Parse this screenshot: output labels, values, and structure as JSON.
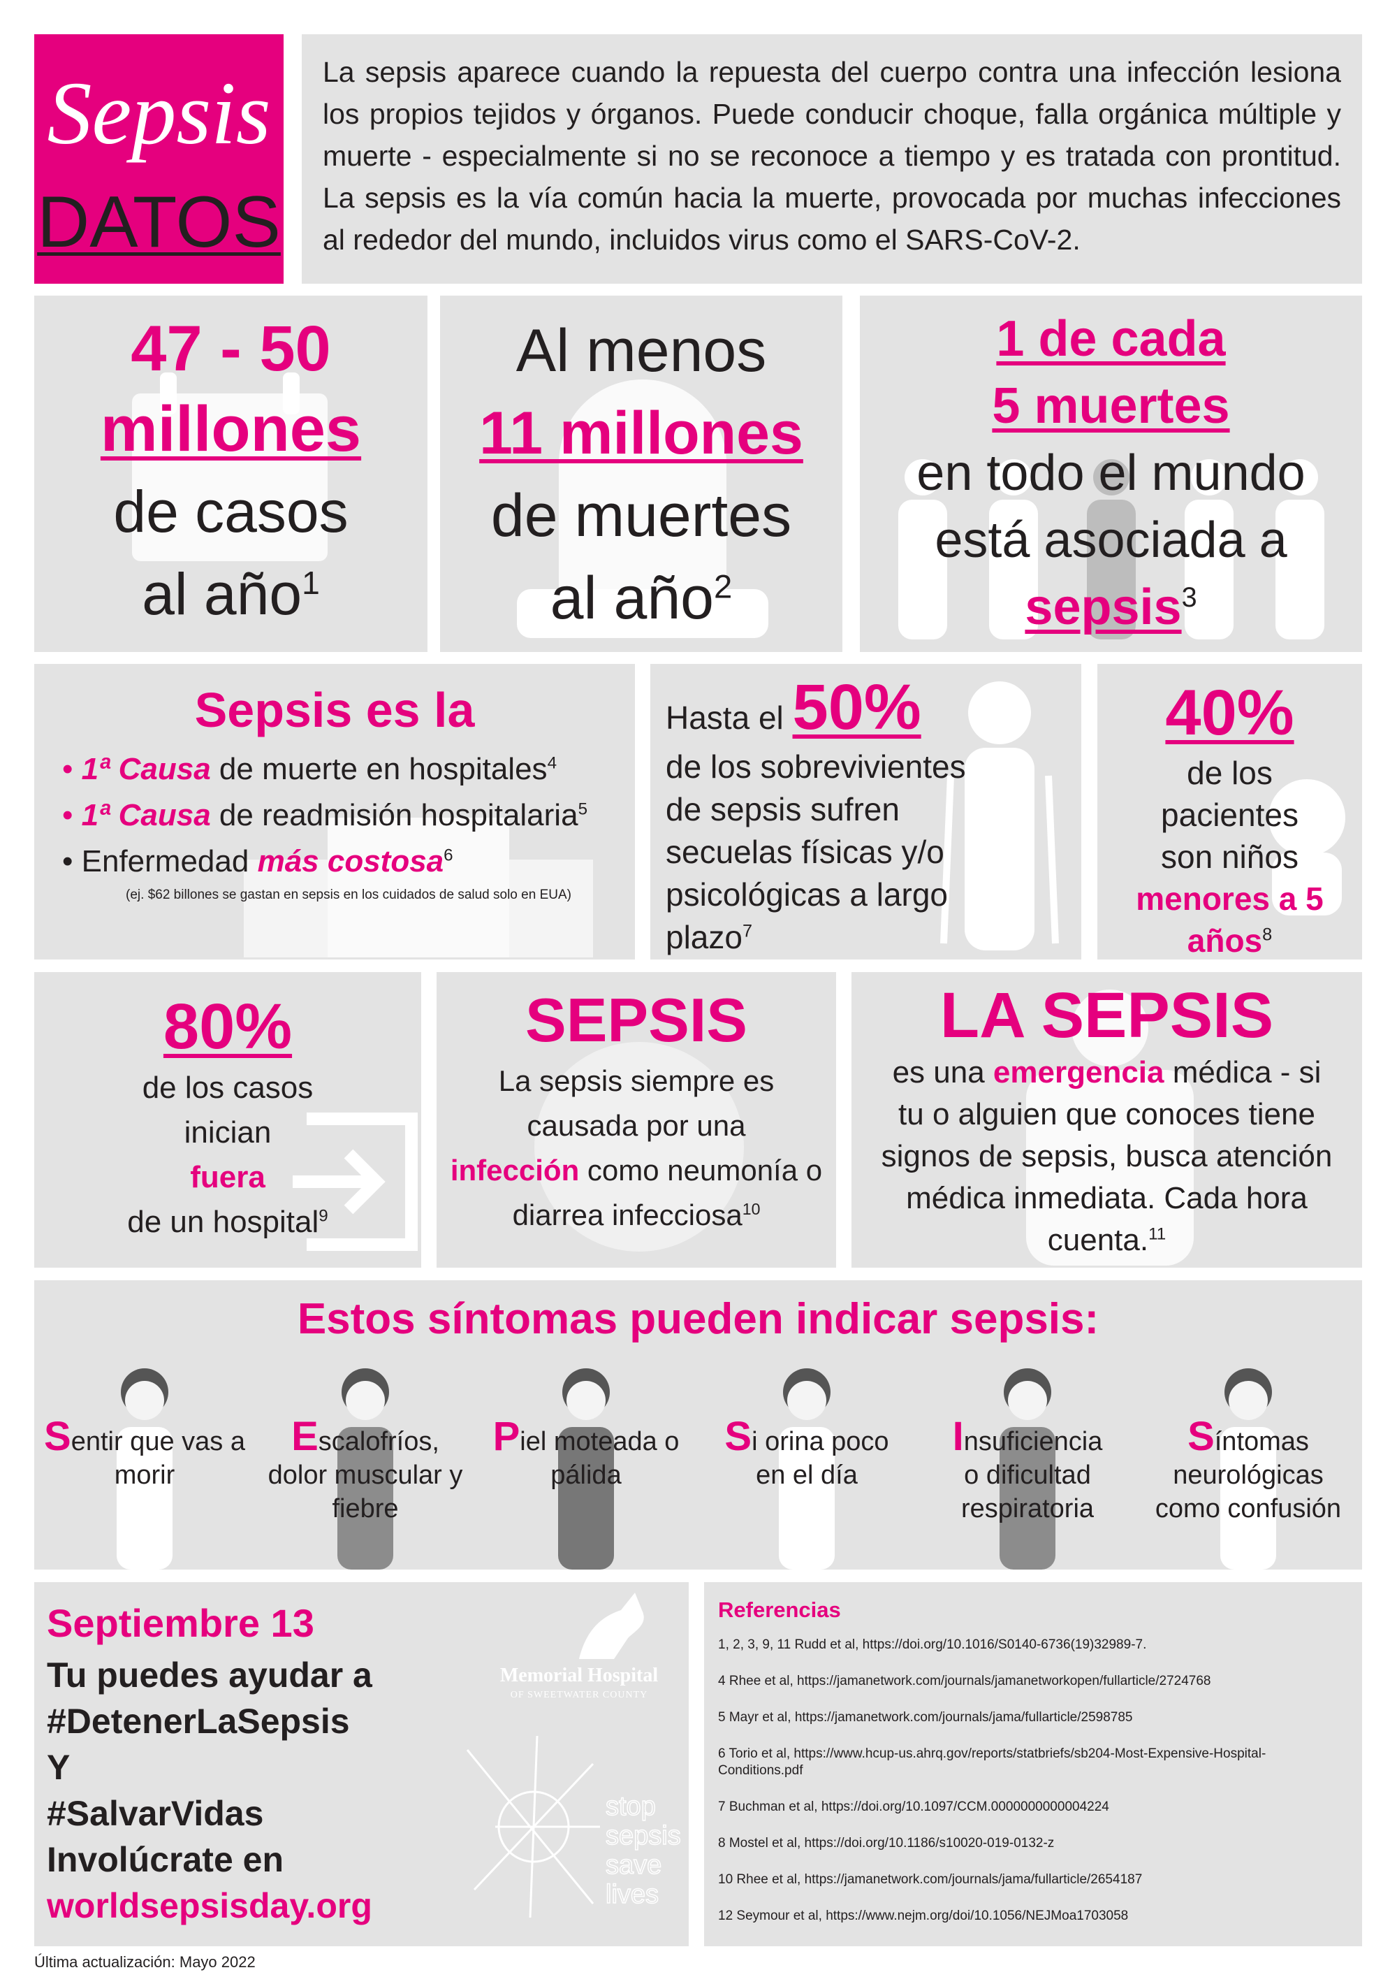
{
  "header": {
    "title1": "Sepsis",
    "title2": "DATOS",
    "intro": "La sepsis aparece cuando la repuesta del cuerpo contra una infección lesiona los propios tejidos y órganos. Puede conducir choque, falla orgánica múltiple y muerte - especialmente si no se reconoce a tiempo y es tratada con prontitud. La sepsis es la vía común hacia la muerte, provocada por muchas infecciones al rededor del mundo, incluidos virus como el SARS-CoV-2."
  },
  "cases": {
    "number": "47 - 50",
    "unit": "millones",
    "line1": "de casos",
    "line2": "al año",
    "ref": "1"
  },
  "deaths": {
    "lead": "Al menos",
    "number": "11 millones",
    "line1": "de muertes",
    "line2": "al año",
    "ref": "2"
  },
  "share": {
    "line1": "1 de cada",
    "line2": "5 muertes",
    "line3": "en todo el mundo",
    "line4": "está asociada a",
    "highlight": "sepsis",
    "ref": "3"
  },
  "causes": {
    "title": "Sepsis es la",
    "items": [
      {
        "emph": "1ª Causa",
        "text": "de muerte en hospitales",
        "ref": "4"
      },
      {
        "emph": "1ª Causa",
        "text": "de readmisión hospitalaria",
        "ref": "5"
      },
      {
        "text": "Enfermedad",
        "emph": "más costosa",
        "ref": "6"
      }
    ],
    "note": "(ej. $62 billones se gastan en sepsis en los cuidados de salud solo en EUA)"
  },
  "survivors": {
    "lead": "Hasta el",
    "number": "50%",
    "text": "de los sobrevivientes de sepsis sufren secuelas físicas y/o psicológicas a largo plazo",
    "ref": "7"
  },
  "children": {
    "number": "40%",
    "text": "de los pacientes son niños",
    "highlight": "menores a 5 años",
    "ref": "8"
  },
  "outside": {
    "number": "80%",
    "text1": "de los casos inician",
    "highlight": "fuera",
    "text2": "de un hospital",
    "ref": "9"
  },
  "infection": {
    "title": "SEPSIS",
    "text1": "La sepsis siempre es causada por una",
    "highlight": "infección",
    "text2": "como neumonía o diarrea infecciosa",
    "ref": "10"
  },
  "emergency": {
    "title": "LA SEPSIS",
    "text1": "es una",
    "highlight": "emergencia",
    "text2": "médica - si tu o alguien que conoces tiene signos de sepsis, busca atención médica inmediata. Cada hora cuenta.",
    "ref": "11"
  },
  "symptoms": {
    "title": "Estos síntomas pueden indicar sepsis:",
    "items": [
      {
        "initial": "S",
        "rest": "entir que vas a morir"
      },
      {
        "initial": "E",
        "rest": "scalofríos, dolor muscular y fiebre"
      },
      {
        "initial": "P",
        "rest": "iel moteada o pálida"
      },
      {
        "initial": "S",
        "rest": "i orina poco en el día"
      },
      {
        "initial": "I",
        "rest": "nsuficiencia o dificultad respiratoria"
      },
      {
        "initial": "S",
        "rest": "íntomas neurológicas como confusión"
      }
    ]
  },
  "campaign": {
    "date": "Septiembre 13",
    "lines": [
      "Tu puedes ayudar a",
      "#DetenerLaSepsis",
      "Y",
      "#SalvarVidas",
      "Involúcrate en"
    ],
    "url": "worldsepsisday.org"
  },
  "logo": {
    "name": "Memorial Hospital",
    "sub": "OF SWEETWATER COUNTY",
    "slogan": [
      "stop",
      "sepsis",
      "save",
      "lives"
    ]
  },
  "references": {
    "title": "Referencias",
    "items": [
      "1, 2, 3, 9, 11 Rudd et al, https://doi.org/10.1016/S0140-6736(19)32989-7.",
      "4 Rhee et al, https://jamanetwork.com/journals/jamanetworkopen/fullarticle/2724768",
      "5 Mayr et al, https://jamanetwork.com/journals/jama/fullarticle/2598785",
      "6 Torio et al, https://www.hcup-us.ahrq.gov/reports/statbriefs/sb204-Most-Expensive-Hospital-Conditions.pdf",
      "7 Buchman et al, https://doi.org/10.1097/CCM.0000000000004224",
      "8 Mostel et al, https://doi.org/10.1186/s10020-019-0132-z",
      "10 Rhee et al, https://jamanetwork.com/journals/jama/fullarticle/2654187",
      "12 Seymour et al, https://www.nejm.org/doi/10.1056/NEJMoa1703058"
    ]
  },
  "footer": "Última actualización: Mayo 2022"
}
